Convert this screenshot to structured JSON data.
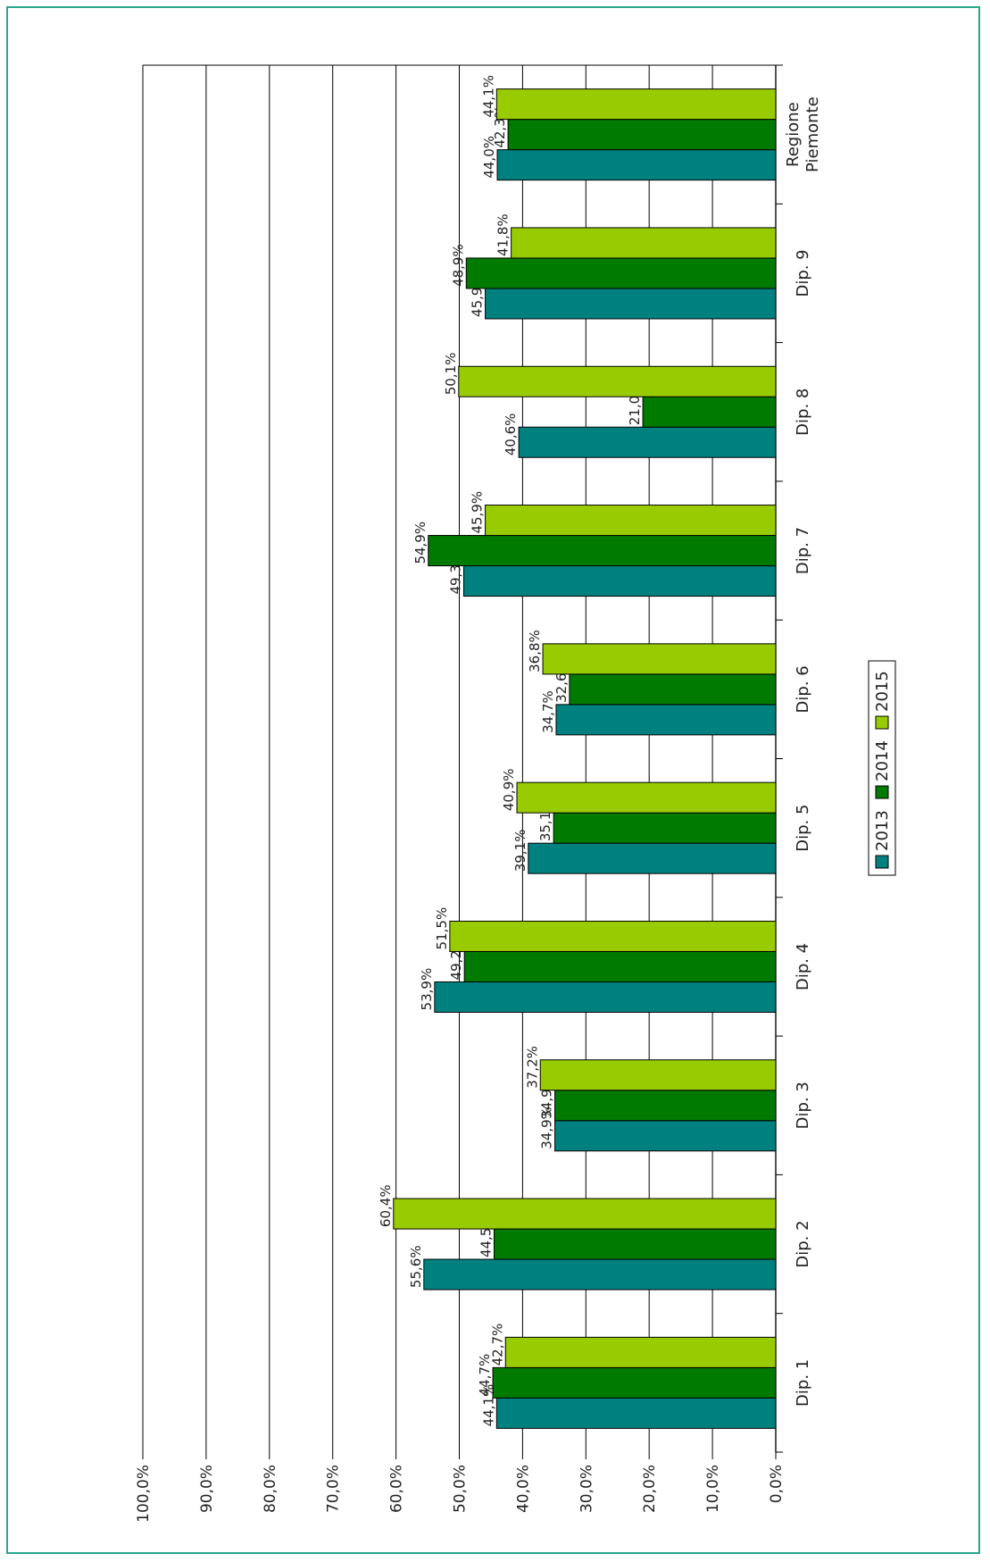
{
  "chart_data": {
    "type": "bar",
    "orientation": "vertical, rendered rotated 90° clockwise",
    "categories": [
      "Dip. 1",
      "Dip. 2",
      "Dip. 3",
      "Dip. 4",
      "Dip. 5",
      "Dip. 6",
      "Dip. 7",
      "Dip. 8",
      "Dip. 9",
      "Regione Piemonte"
    ],
    "series": [
      {
        "name": "2013",
        "color": "#00817f",
        "values": [
          44.1,
          55.6,
          34.9,
          53.9,
          39.1,
          34.7,
          49.3,
          40.6,
          45.9,
          44.0
        ],
        "labels": [
          "44,1%",
          "55,6%",
          "34,9%",
          "53,9%",
          "39,1%",
          "34,7%",
          "49,3%",
          "40,6%",
          "45,9%",
          "44,0%"
        ]
      },
      {
        "name": "2014",
        "color": "#007a00",
        "values": [
          44.7,
          44.5,
          34.9,
          49.2,
          35.1,
          32.6,
          54.9,
          21.0,
          48.9,
          42.3
        ],
        "labels": [
          "44,7%",
          "44,5%",
          "34,9%",
          "49,2%",
          "35,1%",
          "32,6%",
          "54,9%",
          "21,0%",
          "48,9%",
          "42,3%"
        ]
      },
      {
        "name": "2015",
        "color": "#99cc00",
        "values": [
          42.7,
          60.4,
          37.2,
          51.5,
          40.9,
          36.8,
          45.9,
          50.1,
          41.8,
          44.1
        ],
        "labels": [
          "42,7%",
          "60,4%",
          "37,2%",
          "51,5%",
          "40,9%",
          "36,8%",
          "45,9%",
          "50,1%",
          "41,8%",
          "44,1%"
        ]
      }
    ],
    "ylim": [
      0,
      100
    ],
    "yticks": [
      "0,0%",
      "10,0%",
      "20,0%",
      "30,0%",
      "40,0%",
      "50,0%",
      "60,0%",
      "70,0%",
      "80,0%",
      "90,0%",
      "100,0%"
    ],
    "grid": true,
    "legend": "center"
  }
}
